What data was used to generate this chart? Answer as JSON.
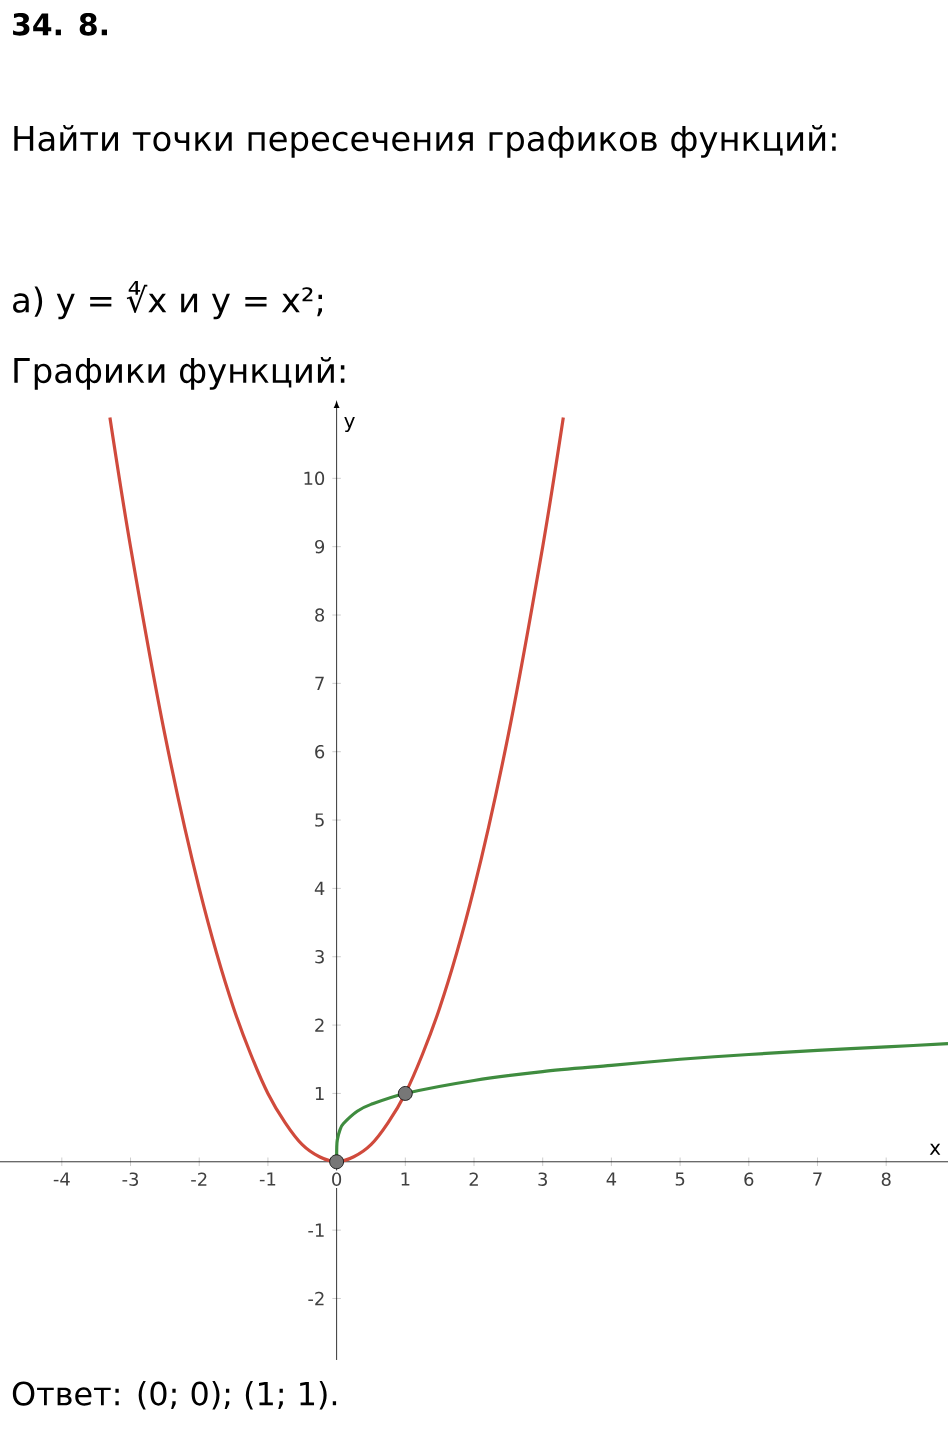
{
  "chart_data": {
    "type": "line",
    "title": "34. 8.",
    "subtitle": "Найти точки пересечения графиков функций:",
    "annotations": [
      "а) y = ∜x  и  y = x²;",
      "Графики функций:",
      "Ответ: (0; 0); (1; 1)."
    ],
    "xlabel": "x",
    "ylabel": "y",
    "xlim": [
      -4.9,
      8.9
    ],
    "ylim": [
      -2.9,
      11
    ],
    "xticks": [
      -4,
      -3,
      -2,
      -1,
      0,
      1,
      2,
      3,
      4,
      5,
      6,
      7,
      8
    ],
    "yticks": [
      -2,
      -1,
      1,
      2,
      3,
      4,
      5,
      6,
      7,
      8,
      9,
      10
    ],
    "series": [
      {
        "type": "line",
        "color": "#d04a3c",
        "marker": "none",
        "x": [
          -3.3,
          -3,
          -2.5,
          -2,
          -1.5,
          -1,
          -0.5,
          0,
          0.5,
          1,
          1.5,
          2,
          2.5,
          3,
          3.3
        ],
        "values": [
          10.89,
          9,
          6.25,
          4,
          2.25,
          1,
          0.25,
          0,
          0.25,
          1,
          2.25,
          4,
          6.25,
          9,
          10.89
        ]
      },
      {
        "type": "line",
        "color": "#3f8c3f",
        "marker": "none",
        "x": [
          0,
          0.002,
          0.01,
          0.05,
          0.1,
          0.3,
          0.5,
          1,
          2,
          3,
          4,
          5,
          6,
          7,
          8,
          8.9
        ],
        "values": [
          0,
          0.21,
          0.32,
          0.47,
          0.56,
          0.74,
          0.84,
          1,
          1.19,
          1.32,
          1.41,
          1.5,
          1.57,
          1.63,
          1.68,
          1.73
        ]
      },
      {
        "type": "scatter",
        "color": "#777777",
        "marker": "circle",
        "x": [
          0,
          1
        ],
        "values": [
          0,
          1
        ]
      }
    ]
  }
}
